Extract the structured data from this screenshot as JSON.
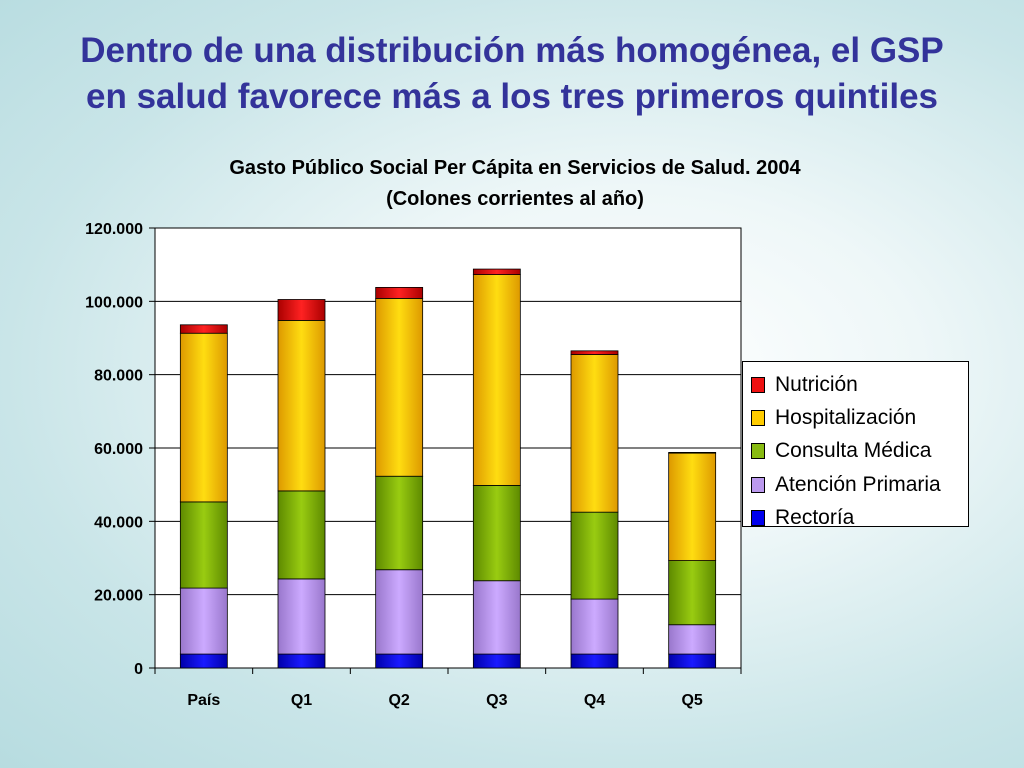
{
  "slide": {
    "title_line1": "Dentro de una distribución más homogénea, el GSP",
    "title_line2": "en salud favorece más a los tres primeros quintiles"
  },
  "chart_data": {
    "type": "bar",
    "stacked": true,
    "title": "Gasto Público Social Per Cápita en Servicios de Salud. 2004",
    "subtitle": "(Colones corrientes al año)",
    "categories": [
      "País",
      "Q1",
      "Q2",
      "Q3",
      "Q4",
      "Q5"
    ],
    "series": [
      {
        "name": "Rectoría",
        "color": "#0000ee",
        "values": [
          3800,
          3800,
          3800,
          3800,
          3800,
          3800
        ]
      },
      {
        "name": "Atención Primaria",
        "color": "#bb99ee",
        "values": [
          18000,
          20500,
          23000,
          20000,
          15000,
          8000
        ]
      },
      {
        "name": "Consulta Médica",
        "color": "#88bb11",
        "values": [
          23500,
          24000,
          25500,
          26000,
          23700,
          17500
        ]
      },
      {
        "name": "Hospitalización",
        "color": "#ffcc00",
        "values": [
          46000,
          46500,
          48500,
          57500,
          43000,
          29300
        ]
      },
      {
        "name": "Nutrición",
        "color": "#ee1111",
        "values": [
          2300,
          5700,
          3000,
          1500,
          1000,
          200
        ]
      }
    ],
    "ylim": [
      0,
      120000
    ],
    "yticks": [
      "0",
      "20.000",
      "40.000",
      "60.000",
      "80.000",
      "100.000",
      "120.000"
    ],
    "grid": true,
    "legend_position": "right",
    "legend_order": [
      "Nutrición",
      "Hospitalización",
      "Consulta Médica",
      "Atención Primaria",
      "Rectoría"
    ]
  },
  "legend": [
    {
      "label": "Nutrición",
      "color": "#ee1111"
    },
    {
      "label": "Hospitalización",
      "color": "#ffcc00"
    },
    {
      "label": "Consulta Médica",
      "color": "#88bb11"
    },
    {
      "label": "Atención Primaria",
      "color": "#bb99ee"
    },
    {
      "label": "Rectoría",
      "color": "#0000ee"
    }
  ]
}
